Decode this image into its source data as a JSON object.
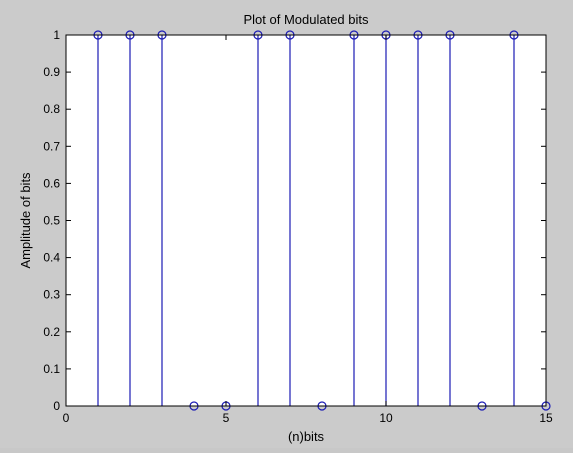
{
  "chart_data": {
    "type": "stem",
    "title": "Plot of Modulated bits",
    "xlabel": "(n)bits",
    "ylabel": "Amplitude of bits",
    "xlim": [
      0,
      15
    ],
    "ylim": [
      0,
      1
    ],
    "x_ticks": [
      0,
      5,
      10,
      15
    ],
    "y_ticks": [
      0,
      0.1,
      0.2,
      0.3,
      0.4,
      0.5,
      0.6,
      0.7,
      0.8,
      0.9,
      1
    ],
    "x_tick_labels": [
      "0",
      "5",
      "10",
      "15"
    ],
    "y_tick_labels": [
      "0",
      "0.1",
      "0.2",
      "0.3",
      "0.4",
      "0.5",
      "0.6",
      "0.7",
      "0.8",
      "0.9",
      "1"
    ],
    "grid": false,
    "x": [
      1,
      2,
      3,
      4,
      5,
      6,
      7,
      8,
      9,
      10,
      11,
      12,
      13,
      14,
      15
    ],
    "y": [
      1,
      1,
      1,
      0,
      0,
      1,
      1,
      0,
      1,
      1,
      1,
      1,
      0,
      1,
      0
    ],
    "colors": {
      "stem": "#1a1ab4",
      "axes_bg": "#ffffff",
      "figure_bg": "#cbcbcb"
    }
  }
}
